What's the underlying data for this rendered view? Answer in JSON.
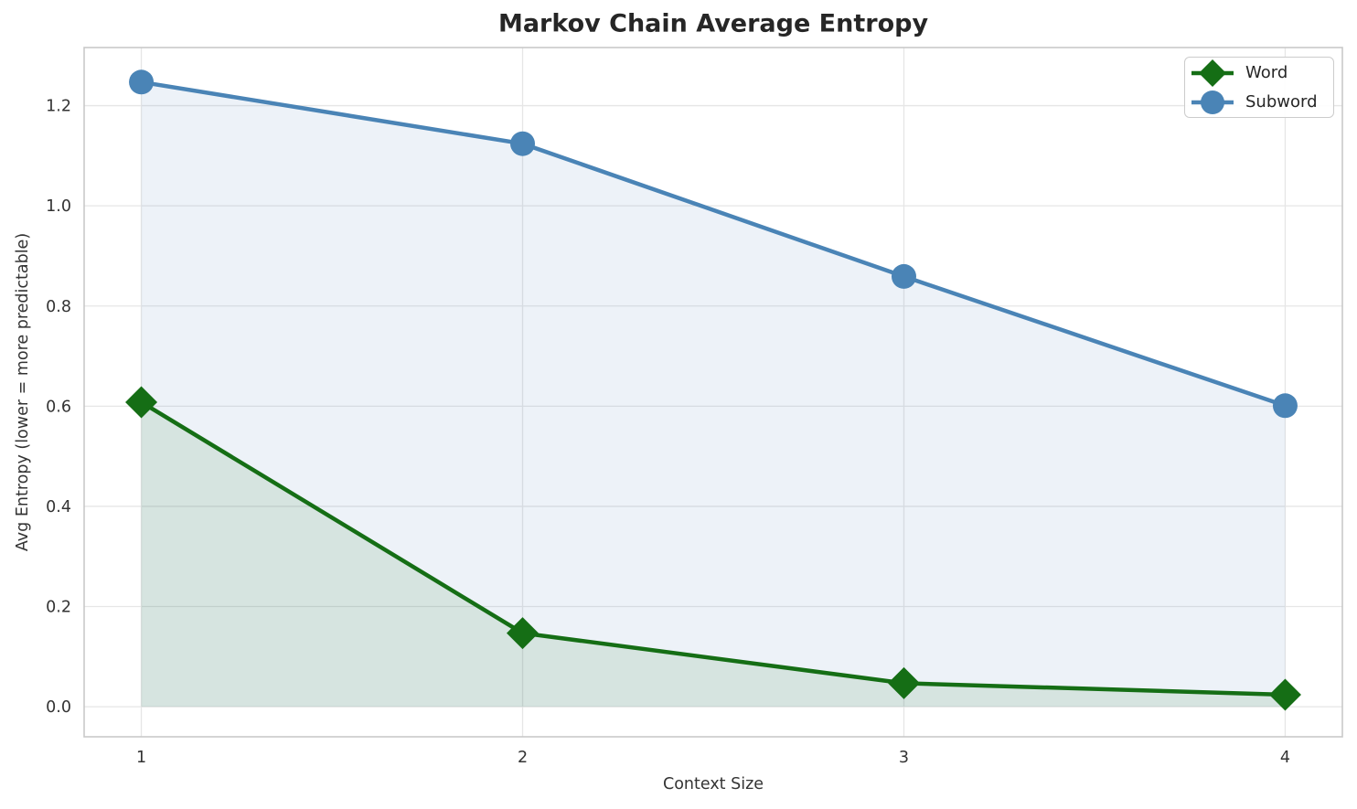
{
  "chart_data": {
    "type": "line",
    "title": "Markov Chain Average Entropy",
    "xlabel": "Context Size",
    "ylabel": "Avg Entropy (lower = more predictable)",
    "x": [
      1,
      2,
      3,
      4
    ],
    "x_tick_labels": [
      "1",
      "2",
      "3",
      "4"
    ],
    "y_tick_labels": [
      "0.0",
      "0.2",
      "0.4",
      "0.6",
      "0.8",
      "1.0",
      "1.2"
    ],
    "xlim": [
      0.85,
      4.15
    ],
    "ylim": [
      -0.06,
      1.316
    ],
    "grid": true,
    "legend_position": "upper right",
    "series": [
      {
        "name": "Word",
        "marker": "diamond",
        "color": "#156e15",
        "fill_alpha": 0.1,
        "values": [
          0.608,
          0.147,
          0.047,
          0.024
        ]
      },
      {
        "name": "Subword",
        "marker": "circle",
        "color": "#4a84b6",
        "fill_alpha": 0.1,
        "values": [
          1.247,
          1.124,
          0.859,
          0.601
        ]
      }
    ]
  },
  "styles": {
    "grid_color": "#e6e6e6",
    "spine_color": "#c9c9c9",
    "tick_label_color": "#333333",
    "title_color": "#262626",
    "background": "#ffffff"
  }
}
